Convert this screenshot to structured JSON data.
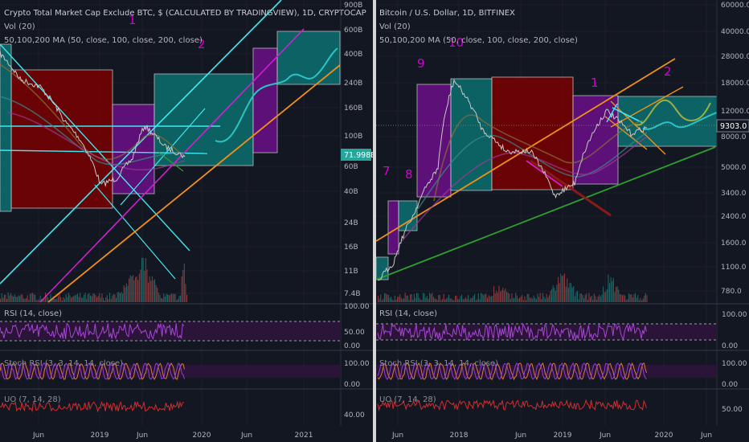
{
  "colors": {
    "background": "#131722",
    "grid": "#1f2230",
    "axis_text": "#b2b5be",
    "title_text": "#c9ccd4",
    "rsi_line": "#a845d6",
    "stoch_k": "#e07a3a",
    "stoch_d": "#8f3fd9",
    "uo_line": "#d12e2e",
    "price_tag_left": "#26a69a",
    "price_tag_right": "#131722",
    "annotation": "#d500d5",
    "cyan_line": "#40e8f0",
    "magenta_line": "#d020d0",
    "orange_line": "#f0901a",
    "green_line": "#2ea02e",
    "dark_red_line": "#8a1a1a",
    "box_red": "#8b0000",
    "box_purple": "#6a0f86",
    "box_teal": "#0b7070"
  },
  "chart_data": [
    {
      "type": "line",
      "panel": "left",
      "title": "Crypto Total Market Cap Exclude BTC, $ (CALCULATED BY TRADINGVIEW), 1D, CRYPTOCAP",
      "volume_label": "Vol (20)",
      "ma_label": "50,100,200 MA (50, close, 100, close, 200, close)",
      "y_scale": "log",
      "y_ticks": [
        "900B",
        "600B",
        "400B",
        "240B",
        "160B",
        "100B",
        "60B",
        "40B",
        "24B",
        "16B",
        "11B",
        "7.4B"
      ],
      "x_ticks": [
        "Jun",
        "2019",
        "Jun",
        "2020",
        "Jun",
        "2021"
      ],
      "last_value_tag": "71.998B",
      "annotations": [
        "1",
        "2"
      ],
      "series": [
        {
          "name": "price",
          "x": [
            "2018-01",
            "2018-03",
            "2018-05",
            "2018-07",
            "2018-09",
            "2018-12",
            "2019-02",
            "2019-04",
            "2019-06",
            "2019-08",
            "2019-10"
          ],
          "y": [
            400,
            260,
            230,
            130,
            95,
            45,
            50,
            70,
            120,
            85,
            72
          ]
        }
      ],
      "indicators": {
        "rsi_label": "RSI (14, close)",
        "rsi_ticks": [
          "100.00",
          "50.00",
          "0.00"
        ],
        "stoch_label": "Stoch RSI (3, 3, 14, 14, close)",
        "stoch_ticks": [
          "100.00",
          "0.00"
        ],
        "uo_label": "UO (7, 14, 28)",
        "uo_ticks": [
          "40.00"
        ]
      }
    },
    {
      "type": "line",
      "panel": "right",
      "title": "Bitcoin / U.S. Dollar, 1D, BITFINEX",
      "volume_label": "Vol (20)",
      "ma_label": "50,100,200 MA (50, close, 100, close, 200, close)",
      "y_scale": "log",
      "y_ticks": [
        "60000.0",
        "40000.0",
        "28000.0",
        "18000.0",
        "12000.0",
        "8000.0",
        "5000.0",
        "3400.0",
        "2400.0",
        "1600.0",
        "1100.0",
        "780.0"
      ],
      "x_ticks": [
        "Jun",
        "2018",
        "Jun",
        "2019",
        "Jun",
        "2020",
        "Jun"
      ],
      "last_value_tag": "9303.0",
      "annotations": [
        "7",
        "8",
        "9",
        "10",
        "1",
        "2"
      ],
      "series": [
        {
          "name": "price",
          "x": [
            "2017-01",
            "2017-04",
            "2017-07",
            "2017-10",
            "2017-12",
            "2018-03",
            "2018-06",
            "2018-09",
            "2018-12",
            "2019-03",
            "2019-06",
            "2019-09",
            "2019-10"
          ],
          "y": [
            900,
            1200,
            2500,
            5000,
            19000,
            9000,
            6500,
            6500,
            3300,
            4000,
            12000,
            8500,
            9300
          ]
        }
      ],
      "indicators": {
        "rsi_label": "RSI (14, close)",
        "rsi_ticks": [
          "100.00",
          "0.00"
        ],
        "stoch_label": "Stoch RSI (3, 3, 14, 14, close)",
        "stoch_ticks": [
          "100.00",
          "0.00"
        ],
        "uo_label": "UO (7, 14, 28)",
        "uo_ticks": [
          "50.00"
        ]
      }
    }
  ]
}
